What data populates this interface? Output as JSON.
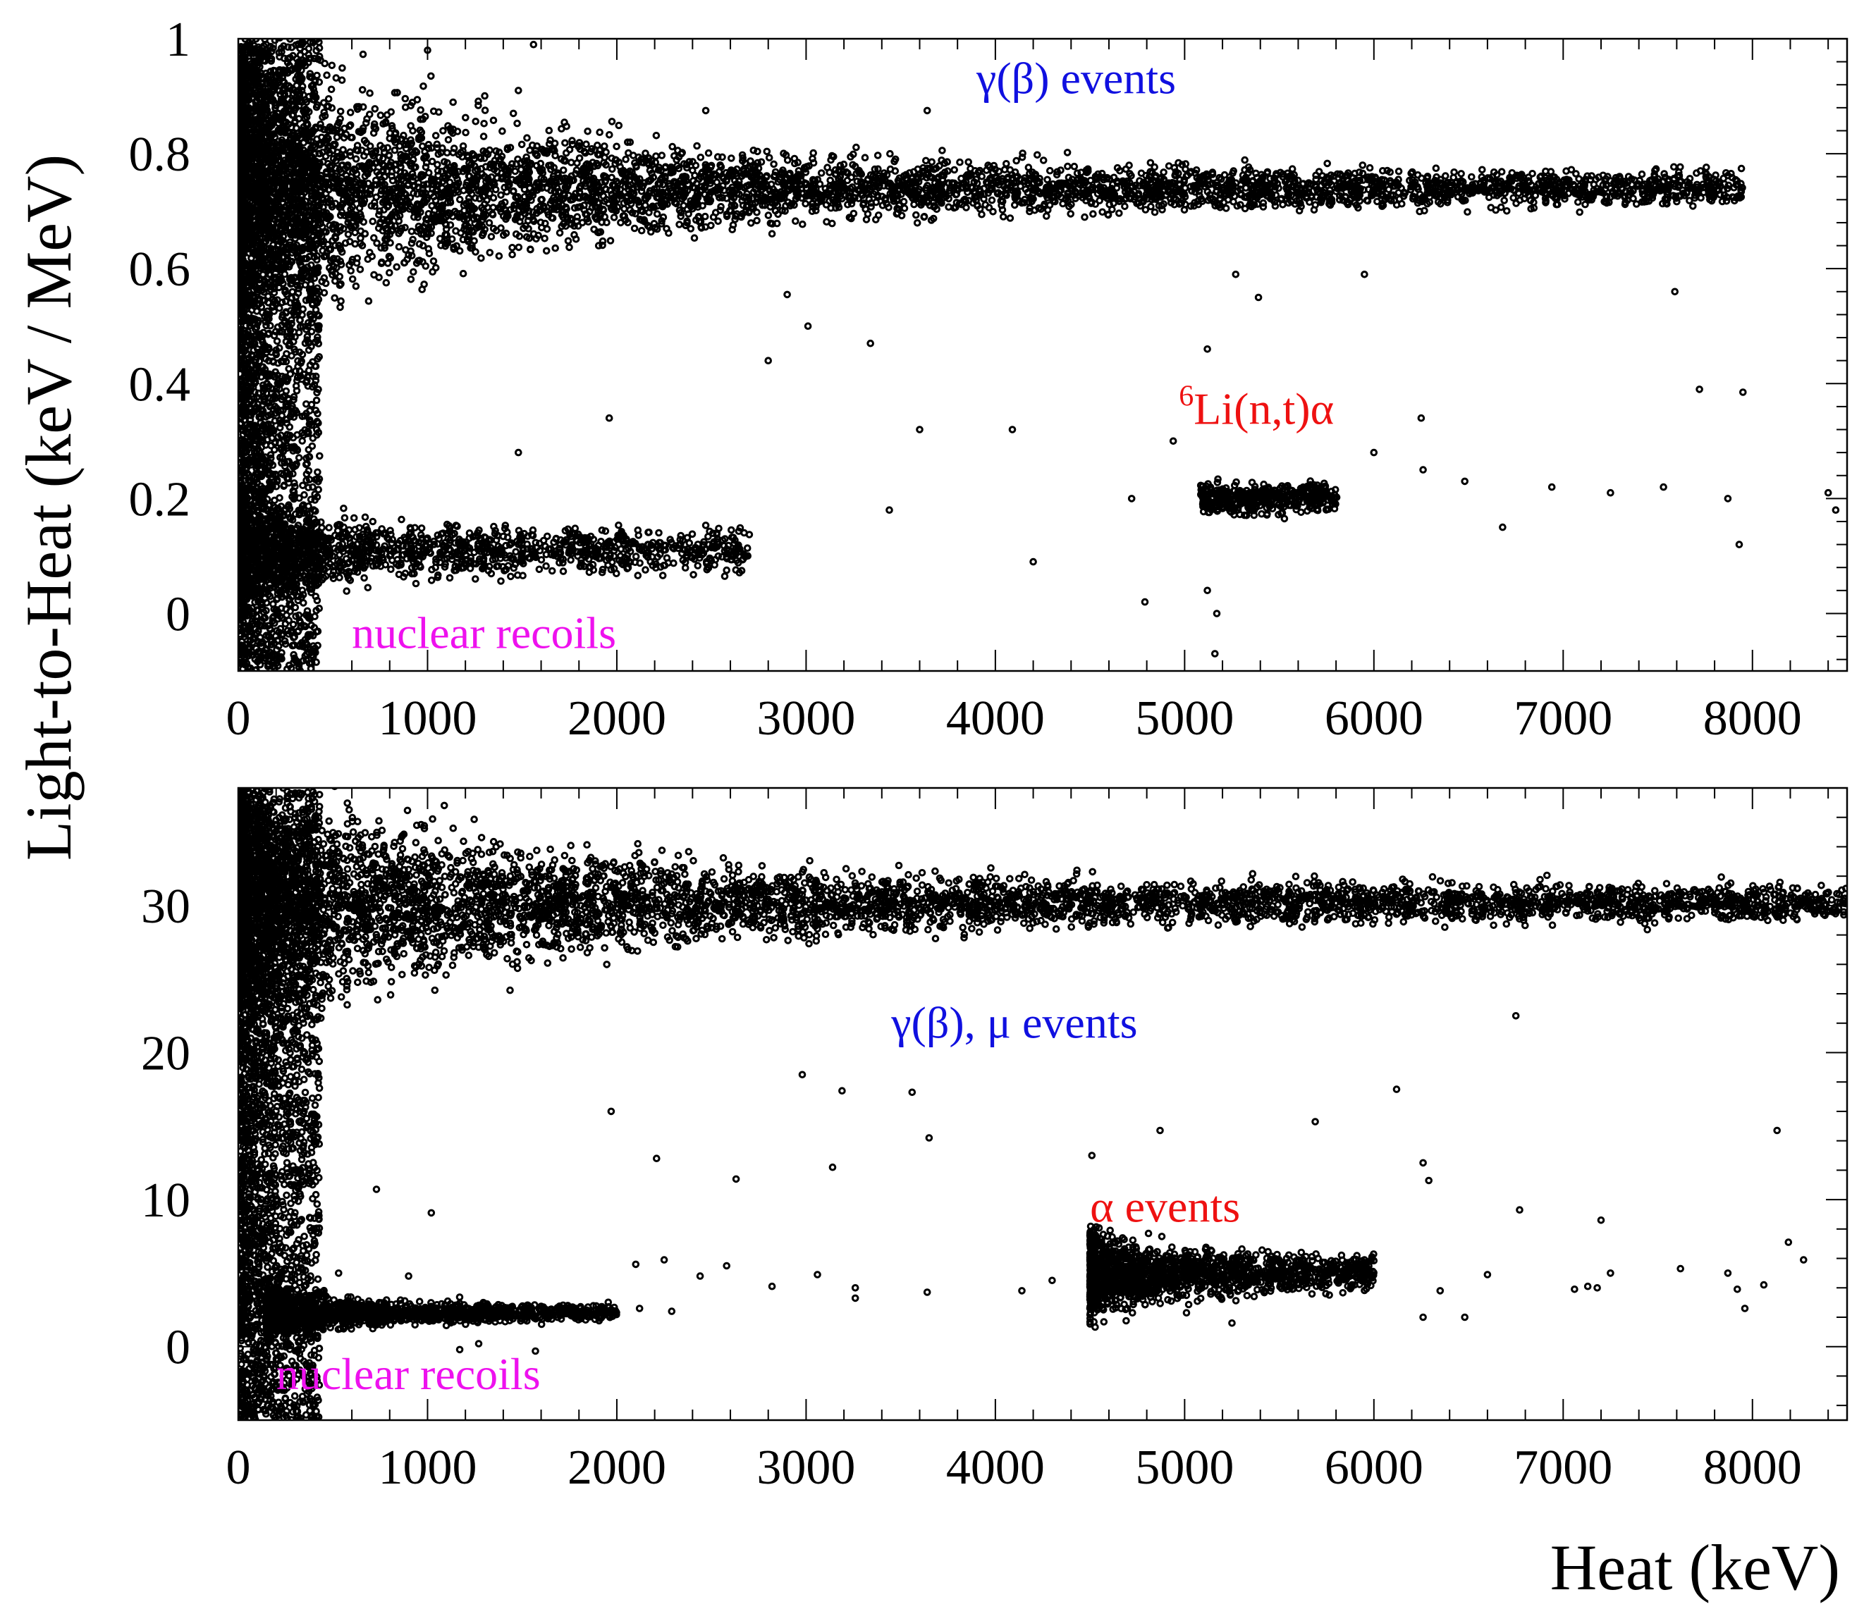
{
  "figure": {
    "ylabel": "Light-to-Heat (keV / MeV)",
    "xlabel": "Heat (keV)"
  },
  "colors": {
    "points": "#000000",
    "blue": "#1010e0",
    "red": "#ee1111",
    "magenta": "#ee11ee"
  },
  "chart_data": [
    {
      "type": "scatter",
      "xlim": [
        0,
        8500
      ],
      "ylim": [
        -0.1,
        1.0
      ],
      "xticks": [
        0,
        1000,
        2000,
        3000,
        4000,
        5000,
        6000,
        7000,
        8000
      ],
      "xtick_labels": [
        "0",
        "1000",
        "2000",
        "3000",
        "4000",
        "5000",
        "6000",
        "7000",
        "8000"
      ],
      "yticks": [
        0,
        0.2,
        0.4,
        0.6,
        0.8,
        1.0
      ],
      "ytick_labels": [
        "0",
        "0.2",
        "0.4",
        "0.6",
        "0.8",
        "1"
      ],
      "grid": false,
      "annotations": [
        {
          "text": "γ(β) events",
          "x": 3900,
          "y": 0.905,
          "color": "blue"
        },
        {
          "sup": "6",
          "text": "Li(n,t)α",
          "x": 4970,
          "y": 0.33,
          "color": "red"
        },
        {
          "text": "nuclear recoils",
          "x": 600,
          "y": -0.06,
          "color": "magenta"
        }
      ],
      "clusters": [
        {
          "name": "gamma-beta band",
          "x_range": [
            0,
            7950
          ],
          "y_center": 0.74,
          "y_spread_low_x": 0.3,
          "y_spread_high_x": 0.04
        },
        {
          "name": "nuclear recoil band",
          "x_range": [
            0,
            2700
          ],
          "y_center": 0.11,
          "y_spread": 0.05
        },
        {
          "name": "6Li(n,t)alpha peak",
          "x_center": 5300,
          "x_range": [
            5100,
            5900
          ],
          "y_center": 0.2,
          "y_spread": 0.03
        }
      ],
      "sample_points": [
        [
          3640,
          0.875
        ],
        [
          2470,
          0.875
        ],
        [
          5390,
          0.55
        ],
        [
          5270,
          0.59
        ],
        [
          5950,
          0.59
        ],
        [
          3010,
          0.5
        ],
        [
          2900,
          0.555
        ],
        [
          3340,
          0.47
        ],
        [
          7590,
          0.56
        ],
        [
          7720,
          0.39
        ],
        [
          7950,
          0.385
        ],
        [
          5120,
          0.46
        ],
        [
          6250,
          0.34
        ],
        [
          4090,
          0.32
        ],
        [
          6000,
          0.28
        ],
        [
          4200,
          0.09
        ],
        [
          4940,
          0.3
        ],
        [
          4720,
          0.2
        ],
        [
          4790,
          0.02
        ],
        [
          5120,
          0.04
        ],
        [
          5170,
          0.0
        ],
        [
          5160,
          -0.07
        ],
        [
          7930,
          0.12
        ],
        [
          8400,
          0.21
        ],
        [
          8440,
          0.18
        ],
        [
          8520,
          0.24
        ],
        [
          6940,
          0.22
        ],
        [
          7250,
          0.21
        ],
        [
          7870,
          0.2
        ],
        [
          7530,
          0.22
        ],
        [
          6680,
          0.15
        ],
        [
          6480,
          0.23
        ],
        [
          6260,
          0.25
        ],
        [
          3440,
          0.18
        ],
        [
          3600,
          0.32
        ],
        [
          2800,
          0.44
        ],
        [
          1960,
          0.34
        ],
        [
          1480,
          0.28
        ],
        [
          580,
          0.11
        ],
        [
          1560,
          0.99
        ],
        [
          1000,
          0.98
        ],
        [
          1480,
          0.91
        ]
      ]
    },
    {
      "type": "scatter",
      "xlim": [
        0,
        8500
      ],
      "ylim": [
        -5,
        38
      ],
      "xticks": [
        0,
        1000,
        2000,
        3000,
        4000,
        5000,
        6000,
        7000,
        8000
      ],
      "xtick_labels": [
        "0",
        "1000",
        "2000",
        "3000",
        "4000",
        "5000",
        "6000",
        "7000",
        "8000"
      ],
      "yticks": [
        0,
        10,
        20,
        30
      ],
      "ytick_labels": [
        "0",
        "10",
        "20",
        "30"
      ],
      "grid": false,
      "annotations": [
        {
          "text": "γ(β), μ events",
          "x": 3450,
          "y": 21.0,
          "color": "blue"
        },
        {
          "text": "α events",
          "x": 4500,
          "y": 8.5,
          "color": "red"
        },
        {
          "text": "nuclear recoils",
          "x": 200,
          "y": -2.9,
          "color": "magenta"
        }
      ],
      "clusters": [
        {
          "name": "gamma-beta-mu band",
          "x_range": [
            0,
            8500
          ],
          "y_center": 30.2,
          "y_spread_low_x": 10,
          "y_spread_high_x": 1.5
        },
        {
          "name": "nuclear recoil band",
          "x_range": [
            150,
            2000
          ],
          "y_center": 2.3,
          "y_spread": 0.8
        },
        {
          "name": "alpha events",
          "x_range": [
            4500,
            6000
          ],
          "y_center": 5.0,
          "y_spread": 1.5
        }
      ],
      "sample_points": [
        [
          6750,
          22.5
        ],
        [
          6120,
          17.5
        ],
        [
          3650,
          14.2
        ],
        [
          3560,
          17.3
        ],
        [
          2980,
          18.5
        ],
        [
          3190,
          17.4
        ],
        [
          1970,
          16.0
        ],
        [
          2210,
          12.8
        ],
        [
          3140,
          12.2
        ],
        [
          2630,
          11.4
        ],
        [
          4870,
          14.7
        ],
        [
          4510,
          13.0
        ],
        [
          5690,
          15.3
        ],
        [
          8130,
          14.7
        ],
        [
          6290,
          11.3
        ],
        [
          6260,
          12.5
        ],
        [
          7200,
          8.6
        ],
        [
          6770,
          9.3
        ],
        [
          7250,
          5.0
        ],
        [
          8190,
          7.1
        ],
        [
          8270,
          5.9
        ],
        [
          7620,
          5.3
        ],
        [
          7870,
          5.0
        ],
        [
          7920,
          3.9
        ],
        [
          7960,
          2.6
        ],
        [
          8060,
          4.2
        ],
        [
          7060,
          3.9
        ],
        [
          7130,
          4.1
        ],
        [
          7180,
          4.0
        ],
        [
          6480,
          2.0
        ],
        [
          6600,
          4.9
        ],
        [
          6260,
          2.0
        ],
        [
          6350,
          3.8
        ],
        [
          5990,
          6.1
        ],
        [
          5950,
          5.9
        ],
        [
          5300,
          5.5
        ],
        [
          5250,
          1.6
        ],
        [
          5010,
          2.3
        ],
        [
          4580,
          5.5
        ],
        [
          4560,
          5.2
        ],
        [
          4300,
          4.5
        ],
        [
          4140,
          3.8
        ],
        [
          3640,
          3.7
        ],
        [
          3260,
          3.3
        ],
        [
          3260,
          4.0
        ],
        [
          3060,
          4.9
        ],
        [
          2820,
          4.1
        ],
        [
          2580,
          5.5
        ],
        [
          2440,
          4.8
        ],
        [
          2290,
          2.4
        ],
        [
          2250,
          5.9
        ],
        [
          2100,
          5.6
        ],
        [
          2120,
          2.6
        ],
        [
          1570,
          -0.3
        ],
        [
          1270,
          0.2
        ],
        [
          1170,
          -0.2
        ],
        [
          1020,
          9.1
        ],
        [
          1000,
          2.0
        ],
        [
          900,
          4.8
        ],
        [
          730,
          10.7
        ],
        [
          530,
          5.0
        ],
        [
          300,
          3.1
        ]
      ]
    }
  ]
}
